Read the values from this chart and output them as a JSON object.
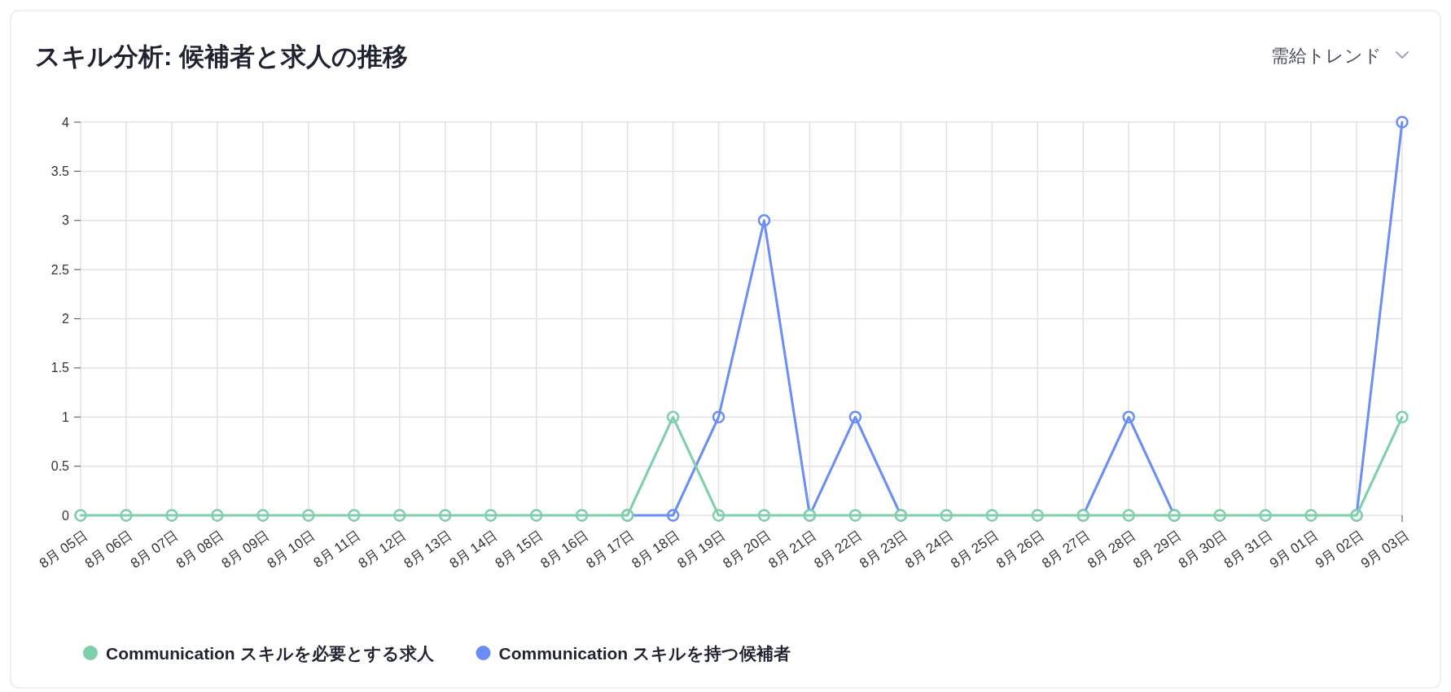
{
  "chart_data": {
    "type": "line",
    "title": "スキル分析: 候補者と求人の推移",
    "annotations": [
      "需給トレンド"
    ],
    "categories": [
      "8月 05日",
      "8月 06日",
      "8月 07日",
      "8月 08日",
      "8月 09日",
      "8月 10日",
      "8月 11日",
      "8月 12日",
      "8月 13日",
      "8月 14日",
      "8月 15日",
      "8月 16日",
      "8月 17日",
      "8月 18日",
      "8月 19日",
      "8月 20日",
      "8月 21日",
      "8月 22日",
      "8月 23日",
      "8月 24日",
      "8月 25日",
      "8月 26日",
      "8月 27日",
      "8月 28日",
      "8月 29日",
      "8月 30日",
      "8月 31日",
      "9月 01日",
      "9月 02日",
      "9月 03日"
    ],
    "series": [
      {
        "name": "Communication スキルを必要とする求人",
        "color": "#7fcfab",
        "values": [
          0,
          0,
          0,
          0,
          0,
          0,
          0,
          0,
          0,
          0,
          0,
          0,
          0,
          1,
          0,
          0,
          0,
          0,
          0,
          0,
          0,
          0,
          0,
          0,
          0,
          0,
          0,
          0,
          0,
          1
        ]
      },
      {
        "name": "Communication スキルを持つ候補者",
        "color": "#6a8ef6",
        "values": [
          null,
          null,
          null,
          null,
          null,
          null,
          null,
          null,
          null,
          null,
          null,
          null,
          0,
          0,
          1,
          3,
          0,
          1,
          0,
          null,
          null,
          null,
          0,
          1,
          0,
          null,
          null,
          null,
          0,
          4
        ]
      }
    ],
    "ylim": [
      0,
      4
    ],
    "yticks": [
      0,
      0.5,
      1,
      1.5,
      2,
      2.5,
      3,
      3.5,
      4
    ],
    "grid": true,
    "legend": "bottom",
    "marker": "circle",
    "line_style": "solid"
  }
}
